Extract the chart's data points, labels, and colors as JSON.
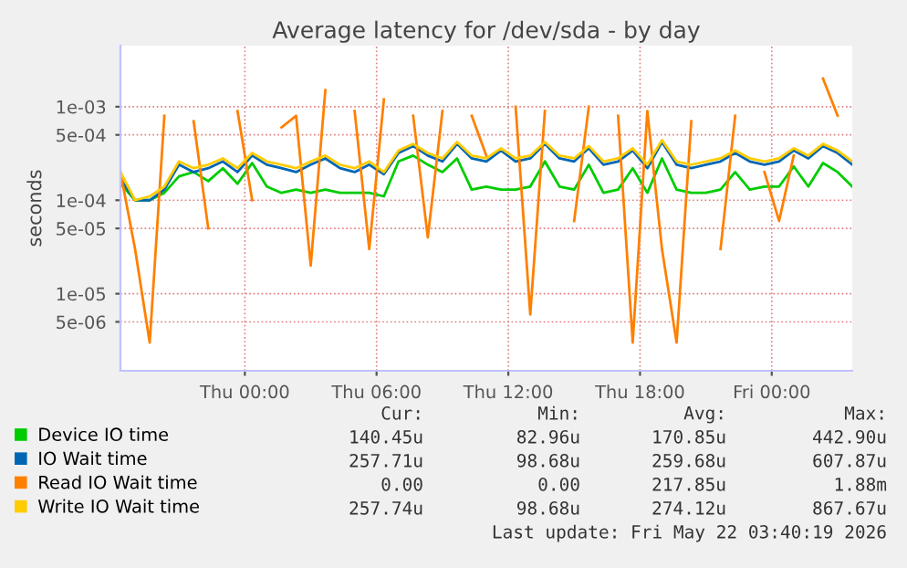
{
  "chart_data": {
    "type": "line",
    "title": "Average latency for /dev/sda - by day",
    "ylabel": "seconds",
    "x": [
      "2026-05-20T18:20",
      "2026-05-20T19:00",
      "2026-05-20T19:40",
      "2026-05-20T20:20",
      "2026-05-20T21:00",
      "2026-05-20T21:40",
      "2026-05-20T22:20",
      "2026-05-20T23:00",
      "2026-05-20T23:40",
      "2026-05-21T00:20",
      "2026-05-21T01:00",
      "2026-05-21T01:40",
      "2026-05-21T02:20",
      "2026-05-21T03:00",
      "2026-05-21T03:40",
      "2026-05-21T04:20",
      "2026-05-21T05:00",
      "2026-05-21T05:40",
      "2026-05-21T06:20",
      "2026-05-21T07:00",
      "2026-05-21T07:40",
      "2026-05-21T08:20",
      "2026-05-21T09:00",
      "2026-05-21T09:40",
      "2026-05-21T10:20",
      "2026-05-21T11:00",
      "2026-05-21T11:40",
      "2026-05-21T12:20",
      "2026-05-21T13:00",
      "2026-05-21T13:40",
      "2026-05-21T14:20",
      "2026-05-21T15:00",
      "2026-05-21T15:40",
      "2026-05-21T16:20",
      "2026-05-21T17:00",
      "2026-05-21T17:40",
      "2026-05-21T18:20",
      "2026-05-21T19:00",
      "2026-05-21T19:40",
      "2026-05-21T20:20",
      "2026-05-21T21:00",
      "2026-05-21T21:40",
      "2026-05-21T22:20",
      "2026-05-21T23:00",
      "2026-05-21T23:40",
      "2026-05-22T00:20",
      "2026-05-22T01:00",
      "2026-05-22T01:40",
      "2026-05-22T02:20",
      "2026-05-22T03:00",
      "2026-05-22T03:40"
    ],
    "series": [
      {
        "name": "Device IO time",
        "color": "#00cc00",
        "values": [
          0.00015,
          0.0001,
          0.0001,
          0.00012,
          0.00018,
          0.0002,
          0.00016,
          0.00022,
          0.00015,
          0.00025,
          0.00014,
          0.00012,
          0.00013,
          0.00012,
          0.00013,
          0.00012,
          0.00012,
          0.00012,
          0.00011,
          0.00026,
          0.0003,
          0.00024,
          0.0002,
          0.00028,
          0.00013,
          0.00014,
          0.00013,
          0.00013,
          0.00014,
          0.00026,
          0.00014,
          0.00013,
          0.00024,
          0.00012,
          0.00013,
          0.00022,
          0.00012,
          0.00028,
          0.00013,
          0.00012,
          0.00012,
          0.00013,
          0.0002,
          0.00013,
          0.00014,
          0.00014,
          0.00023,
          0.00014,
          0.00025,
          0.0002,
          0.00014
        ]
      },
      {
        "name": "IO Wait time",
        "color": "#0066b3",
        "values": [
          0.00017,
          0.0001,
          0.0001,
          0.00013,
          0.00024,
          0.0002,
          0.00022,
          0.00026,
          0.0002,
          0.0003,
          0.00024,
          0.00022,
          0.0002,
          0.00024,
          0.00028,
          0.00022,
          0.0002,
          0.00024,
          0.00019,
          0.00032,
          0.00038,
          0.0003,
          0.00026,
          0.0004,
          0.00028,
          0.00026,
          0.00034,
          0.00026,
          0.00028,
          0.0004,
          0.00028,
          0.00026,
          0.00036,
          0.00024,
          0.00026,
          0.00034,
          0.00022,
          0.00042,
          0.00024,
          0.00022,
          0.00024,
          0.00026,
          0.00032,
          0.00026,
          0.00024,
          0.00026,
          0.00034,
          0.00028,
          0.00038,
          0.00032,
          0.00024
        ]
      },
      {
        "name": "Read IO Wait time",
        "color": "#ff8000",
        "values": [
          0.0002,
          3e-05,
          3e-06,
          0.0008,
          null,
          0.0007,
          5e-05,
          null,
          0.0009,
          0.0001,
          null,
          0.0006,
          0.0008,
          2e-05,
          0.0015,
          null,
          0.0009,
          3e-05,
          0.0012,
          null,
          0.0008,
          4e-05,
          0.0009,
          null,
          0.0008,
          0.0003,
          null,
          0.001,
          6e-06,
          0.0009,
          null,
          6e-05,
          0.001,
          null,
          0.0008,
          3e-06,
          0.0009,
          3e-05,
          3e-06,
          0.0007,
          null,
          3e-05,
          0.0008,
          null,
          0.0002,
          6e-05,
          0.0003,
          null,
          0.002,
          0.0008,
          null
        ]
      },
      {
        "name": "Write IO Wait time",
        "color": "#ffcc00",
        "values": [
          0.0002,
          0.0001,
          0.00011,
          0.00014,
          0.00026,
          0.00022,
          0.00024,
          0.00028,
          0.00022,
          0.00032,
          0.00026,
          0.00024,
          0.00022,
          0.00026,
          0.0003,
          0.00024,
          0.00022,
          0.00026,
          0.0002,
          0.00034,
          0.0004,
          0.00032,
          0.00028,
          0.00042,
          0.0003,
          0.00028,
          0.00036,
          0.00028,
          0.0003,
          0.00042,
          0.0003,
          0.00028,
          0.00038,
          0.00026,
          0.00028,
          0.00036,
          0.00024,
          0.00044,
          0.00026,
          0.00024,
          0.00026,
          0.00028,
          0.00034,
          0.00028,
          0.00026,
          0.00028,
          0.00036,
          0.0003,
          0.0004,
          0.00034,
          0.00026
        ]
      }
    ],
    "log": "y",
    "ylim": [
      1.5e-06,
      0.0045
    ],
    "yticks": [
      {
        "value": 5e-06,
        "label": "5e-06"
      },
      {
        "value": 1e-05,
        "label": "1e-05"
      },
      {
        "value": 5e-05,
        "label": "5e-05"
      },
      {
        "value": 0.0001,
        "label": "1e-04"
      },
      {
        "value": 0.0005,
        "label": "5e-04"
      },
      {
        "value": 0.001,
        "label": "1e-03"
      }
    ],
    "xlim": [
      "2026-05-20T18:20",
      "2026-05-22T03:40"
    ],
    "xticks": [
      {
        "value": "2026-05-21T00:00",
        "label": "Thu 00:00"
      },
      {
        "value": "2026-05-21T06:00",
        "label": "Thu 06:00"
      },
      {
        "value": "2026-05-21T12:00",
        "label": "Thu 12:00"
      },
      {
        "value": "2026-05-21T18:00",
        "label": "Thu 18:00"
      },
      {
        "value": "2026-05-22T00:00",
        "label": "Fri 00:00"
      }
    ],
    "grid": true,
    "legend": "bottom",
    "line_style": "solid",
    "marker": "none",
    "annotations": [
      "Cur:",
      "Min:",
      "Avg:",
      "Max:",
      "140.45u",
      "82.96u",
      "170.85u",
      "442.90u",
      "257.71u",
      "98.68u",
      "259.68u",
      "607.87u",
      "0.00",
      "0.00",
      "217.85u",
      "1.88m",
      "257.74u",
      "98.68u",
      "274.12u",
      "867.67u",
      "Last update: Fri May 22 03:40:19 2026"
    ]
  }
}
